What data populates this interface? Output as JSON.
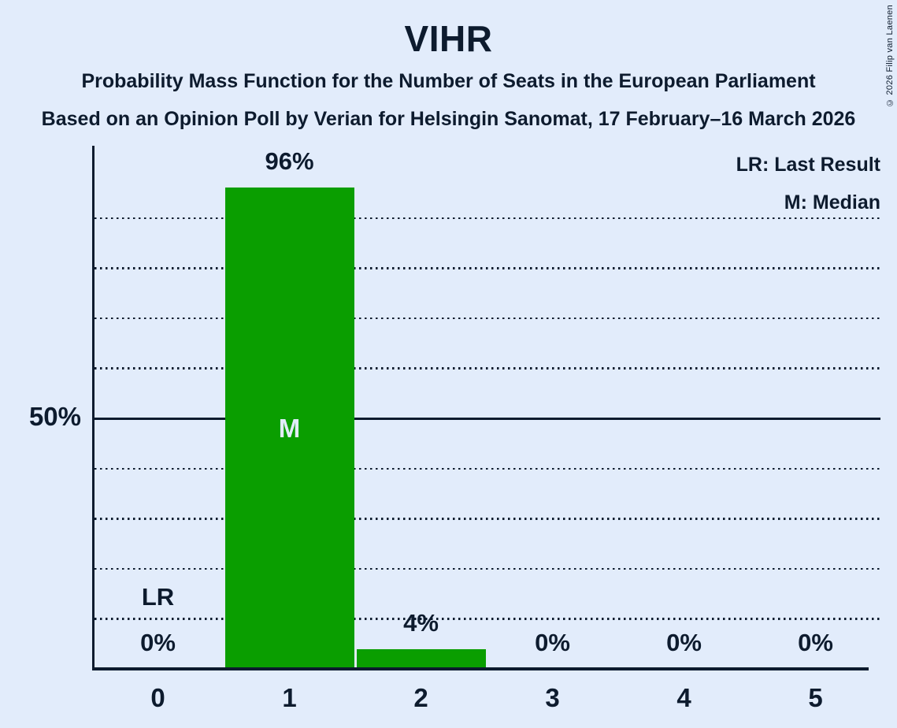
{
  "title": "VIHR",
  "subtitles": [
    "Probability Mass Function for the Number of Seats in the European Parliament",
    "Based on an Opinion Poll by Verian for Helsingin Sanomat, 17 February–16 March 2026"
  ],
  "legend": {
    "last_result": "LR: Last Result",
    "median": "M: Median"
  },
  "copyright": "© 2026 Filip van Laenen",
  "colors": {
    "background": "#e2ecfb",
    "bar": "#0a9e00",
    "text": "#0d1b2e",
    "median_label": "#e2ecfb"
  },
  "chart_data": {
    "type": "bar",
    "title": "VIHR",
    "categories": [
      "0",
      "1",
      "2",
      "3",
      "4",
      "5"
    ],
    "values": [
      0,
      96,
      4,
      0,
      0,
      0
    ],
    "value_labels": [
      "0%",
      "96%",
      "4%",
      "0%",
      "0%",
      "0%"
    ],
    "ylim": [
      0,
      100
    ],
    "y_tick_label": "50%",
    "y_tick_percent": 50,
    "dotted_gridlines_percent": [
      10,
      20,
      30,
      40,
      60,
      70,
      80,
      90
    ],
    "solid_gridline_percent": 50,
    "grid": "dotted horizontal",
    "legend_position": "top-right",
    "median_category": "1",
    "median_marker": "M",
    "last_result_category": "0",
    "last_result_marker": "LR"
  }
}
